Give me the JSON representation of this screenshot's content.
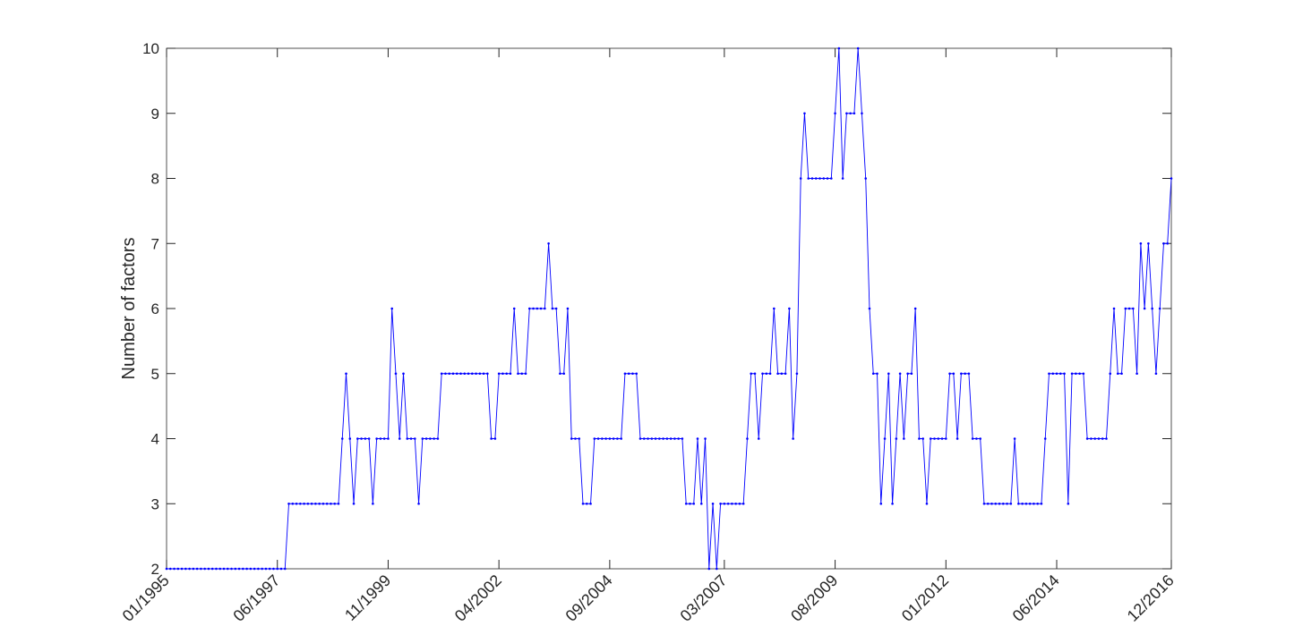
{
  "chart_data": {
    "type": "line",
    "ylabel": "Number of factors",
    "color": "#0000ff",
    "x": [
      "01/1995",
      "02/1995",
      "03/1995",
      "04/1995",
      "05/1995",
      "06/1995",
      "07/1995",
      "08/1995",
      "09/1995",
      "10/1995",
      "11/1995",
      "12/1995",
      "01/1996",
      "02/1996",
      "03/1996",
      "04/1996",
      "05/1996",
      "06/1996",
      "07/1996",
      "08/1996",
      "09/1996",
      "10/1996",
      "11/1996",
      "12/1996",
      "01/1997",
      "02/1997",
      "03/1997",
      "04/1997",
      "05/1997",
      "06/1997",
      "07/1997",
      "08/1997",
      "09/1997",
      "10/1997",
      "11/1997",
      "12/1997",
      "01/1998",
      "02/1998",
      "03/1998",
      "04/1998",
      "05/1998",
      "06/1998",
      "07/1998",
      "08/1998",
      "09/1998",
      "10/1998",
      "11/1998",
      "12/1998",
      "01/1999",
      "02/1999",
      "03/1999",
      "04/1999",
      "05/1999",
      "06/1999",
      "07/1999",
      "08/1999",
      "09/1999",
      "10/1999",
      "11/1999",
      "12/1999",
      "01/2000",
      "02/2000",
      "03/2000",
      "04/2000",
      "05/2000",
      "06/2000",
      "07/2000",
      "08/2000",
      "09/2000",
      "10/2000",
      "11/2000",
      "12/2000",
      "01/2001",
      "02/2001",
      "03/2001",
      "04/2001",
      "05/2001",
      "06/2001",
      "07/2001",
      "08/2001",
      "09/2001",
      "10/2001",
      "11/2001",
      "12/2001",
      "01/2002",
      "02/2002",
      "03/2002",
      "04/2002",
      "05/2002",
      "06/2002",
      "07/2002",
      "08/2002",
      "09/2002",
      "10/2002",
      "11/2002",
      "12/2002",
      "01/2003",
      "02/2003",
      "03/2003",
      "04/2003",
      "05/2003",
      "06/2003",
      "07/2003",
      "08/2003",
      "09/2003",
      "10/2003",
      "11/2003",
      "12/2003",
      "01/2004",
      "02/2004",
      "03/2004",
      "04/2004",
      "05/2004",
      "06/2004",
      "07/2004",
      "08/2004",
      "09/2004",
      "10/2004",
      "11/2004",
      "12/2004",
      "01/2005",
      "02/2005",
      "03/2005",
      "04/2005",
      "05/2005",
      "06/2005",
      "07/2005",
      "08/2005",
      "09/2005",
      "10/2005",
      "11/2005",
      "12/2005",
      "01/2006",
      "02/2006",
      "03/2006",
      "04/2006",
      "05/2006",
      "06/2006",
      "07/2006",
      "08/2006",
      "09/2006",
      "10/2006",
      "11/2006",
      "12/2006",
      "01/2007",
      "02/2007",
      "03/2007",
      "04/2007",
      "05/2007",
      "06/2007",
      "07/2007",
      "08/2007",
      "09/2007",
      "10/2007",
      "11/2007",
      "12/2007",
      "01/2008",
      "02/2008",
      "03/2008",
      "04/2008",
      "05/2008",
      "06/2008",
      "07/2008",
      "08/2008",
      "09/2008",
      "10/2008",
      "11/2008",
      "12/2008",
      "01/2009",
      "02/2009",
      "03/2009",
      "04/2009",
      "05/2009",
      "06/2009",
      "07/2009",
      "08/2009",
      "09/2009",
      "10/2009",
      "11/2009",
      "12/2009",
      "01/2010",
      "02/2010",
      "03/2010",
      "04/2010",
      "05/2010",
      "06/2010",
      "07/2010",
      "08/2010",
      "09/2010",
      "10/2010",
      "11/2010",
      "12/2010",
      "01/2011",
      "02/2011",
      "03/2011",
      "04/2011",
      "05/2011",
      "06/2011",
      "07/2011",
      "08/2011",
      "09/2011",
      "10/2011",
      "11/2011",
      "12/2011",
      "01/2012",
      "02/2012",
      "03/2012",
      "04/2012",
      "05/2012",
      "06/2012",
      "07/2012",
      "08/2012",
      "09/2012",
      "10/2012",
      "11/2012",
      "12/2012",
      "01/2013",
      "02/2013",
      "03/2013",
      "04/2013",
      "05/2013",
      "06/2013",
      "07/2013",
      "08/2013",
      "09/2013",
      "10/2013",
      "11/2013",
      "12/2013",
      "01/2014",
      "02/2014",
      "03/2014",
      "04/2014",
      "05/2014",
      "06/2014",
      "07/2014",
      "08/2014",
      "09/2014",
      "10/2014",
      "11/2014",
      "12/2014",
      "01/2015",
      "02/2015",
      "03/2015",
      "04/2015",
      "05/2015",
      "06/2015",
      "07/2015",
      "08/2015",
      "09/2015",
      "10/2015",
      "11/2015",
      "12/2015",
      "01/2016",
      "02/2016",
      "03/2016",
      "04/2016",
      "05/2016",
      "06/2016",
      "07/2016",
      "08/2016",
      "09/2016",
      "10/2016",
      "11/2016",
      "12/2016"
    ],
    "values": [
      2,
      2,
      2,
      2,
      2,
      2,
      2,
      2,
      2,
      2,
      2,
      2,
      2,
      2,
      2,
      2,
      2,
      2,
      2,
      2,
      2,
      2,
      2,
      2,
      2,
      2,
      2,
      2,
      2,
      2,
      2,
      2,
      3,
      3,
      3,
      3,
      3,
      3,
      3,
      3,
      3,
      3,
      3,
      3,
      3,
      3,
      4,
      5,
      4,
      3,
      4,
      4,
      4,
      4,
      3,
      4,
      4,
      4,
      4,
      6,
      5,
      4,
      5,
      4,
      4,
      4,
      3,
      4,
      4,
      4,
      4,
      4,
      5,
      5,
      5,
      5,
      5,
      5,
      5,
      5,
      5,
      5,
      5,
      5,
      5,
      4,
      4,
      5,
      5,
      5,
      5,
      6,
      5,
      5,
      5,
      6,
      6,
      6,
      6,
      6,
      7,
      6,
      6,
      5,
      5,
      6,
      4,
      4,
      4,
      3,
      3,
      3,
      4,
      4,
      4,
      4,
      4,
      4,
      4,
      4,
      5,
      5,
      5,
      5,
      4,
      4,
      4,
      4,
      4,
      4,
      4,
      4,
      4,
      4,
      4,
      4,
      3,
      3,
      3,
      4,
      3,
      4,
      2,
      3,
      2,
      3,
      3,
      3,
      3,
      3,
      3,
      3,
      4,
      5,
      5,
      4,
      5,
      5,
      5,
      6,
      5,
      5,
      5,
      6,
      4,
      5,
      8,
      9,
      8,
      8,
      8,
      8,
      8,
      8,
      8,
      9,
      10,
      8,
      9,
      9,
      9,
      10,
      9,
      8,
      6,
      5,
      5,
      3,
      4,
      5,
      3,
      4,
      5,
      4,
      5,
      5,
      6,
      4,
      4,
      3,
      4,
      4,
      4,
      4,
      4,
      5,
      5,
      4,
      5,
      5,
      5,
      4,
      4,
      4,
      3,
      3,
      3,
      3,
      3,
      3,
      3,
      3,
      4,
      3,
      3,
      3,
      3,
      3,
      3,
      3,
      4,
      5,
      5,
      5,
      5,
      5,
      3,
      5,
      5,
      5,
      5,
      4,
      4,
      4,
      4,
      4,
      4,
      5,
      6,
      5,
      5,
      6,
      6,
      6,
      5,
      7,
      6,
      7,
      6,
      5,
      6,
      7,
      7,
      8
    ],
    "xlim": [
      "01/1995",
      "12/2016"
    ],
    "xticks": [
      "01/1995",
      "06/1997",
      "11/1999",
      "04/2002",
      "09/2004",
      "03/2007",
      "08/2009",
      "01/2012",
      "06/2014",
      "12/2016"
    ],
    "ylim": [
      2,
      10
    ],
    "yticks": [
      2,
      3,
      4,
      5,
      6,
      7,
      8,
      9,
      10
    ],
    "grid": false
  }
}
